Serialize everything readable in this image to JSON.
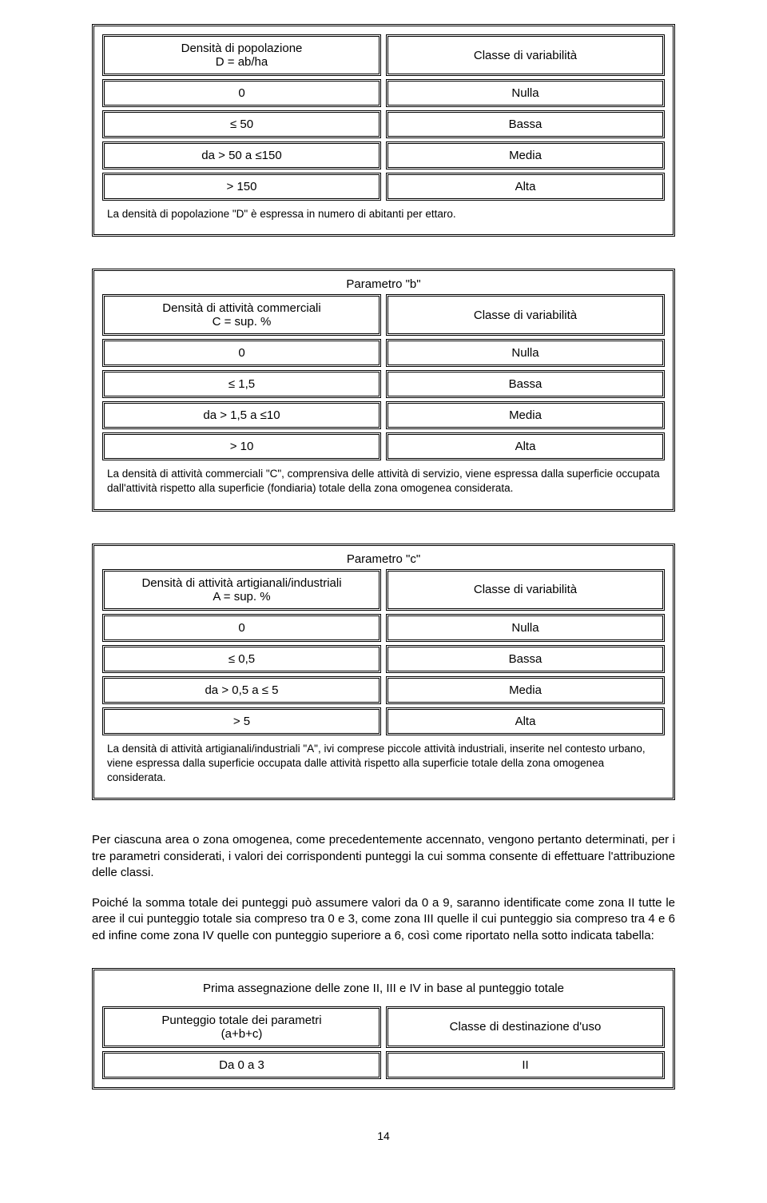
{
  "tableA": {
    "headerLeft": "Densità di popolazione\nD = ab/ha",
    "headerRight": "Classe di variabilità",
    "rows": [
      {
        "left": "0",
        "right": "Nulla"
      },
      {
        "left": "≤ 50",
        "right": "Bassa"
      },
      {
        "left": "da > 50 a ≤150",
        "right": "Media"
      },
      {
        "left": "> 150",
        "right": "Alta"
      }
    ],
    "note": "La densità di popolazione \"D\" è espressa in numero di abitanti per ettaro."
  },
  "tableB": {
    "title": "Parametro \"b\"",
    "headerLeft": "Densità di attività commerciali\nC = sup. %",
    "headerRight": "Classe di variabilità",
    "rows": [
      {
        "left": "0",
        "right": "Nulla"
      },
      {
        "left": "≤ 1,5",
        "right": "Bassa"
      },
      {
        "left": "da > 1,5 a ≤10",
        "right": "Media"
      },
      {
        "left": "> 10",
        "right": "Alta"
      }
    ],
    "note": "La densità di attività commerciali \"C\", comprensiva delle attività di servizio, viene espressa dalla superficie occupata dall'attività rispetto alla superficie (fondiaria) totale della zona omogenea considerata."
  },
  "tableC": {
    "title": "Parametro \"c\"",
    "headerLeft": "Densità di attività artigianali/industriali\nA = sup. %",
    "headerRight": "Classe di variabilità",
    "rows": [
      {
        "left": "0",
        "right": "Nulla"
      },
      {
        "left": "≤ 0,5",
        "right": "Bassa"
      },
      {
        "left": "da > 0,5 a ≤ 5",
        "right": "Media"
      },
      {
        "left": "> 5",
        "right": "Alta"
      }
    ],
    "note": "La densità di attività artigianali/industriali \"A\", ivi comprese piccole attività industriali, inserite nel contesto urbano, viene espressa dalla superficie occupata dalle attività rispetto alla superficie totale della zona omogenea considerata."
  },
  "para1": "Per ciascuna area o zona omogenea, come precedentemente accennato, vengono pertanto determinati, per i tre parametri considerati, i valori dei corrispondenti punteggi la cui somma consente di effettuare l'attribuzione delle classi.",
  "para2": "Poiché la somma totale dei punteggi può assumere valori da 0 a 9, saranno identificate come zona II tutte le aree il cui punteggio totale sia compreso tra 0 e 3, come zona III quelle il cui punteggio sia compreso tra 4 e 6 ed infine come zona IV quelle con punteggio superiore a 6, così come riportato nella sotto indicata tabella:",
  "assign": {
    "title": "Prima assegnazione delle zone II, III e IV in base al punteggio totale",
    "headerLeft": "Punteggio totale dei parametri\n(a+b+c)",
    "headerRight": "Classe di destinazione d'uso",
    "rows": [
      {
        "left": "Da 0 a 3",
        "right": "II"
      }
    ]
  },
  "pageNumber": "14"
}
